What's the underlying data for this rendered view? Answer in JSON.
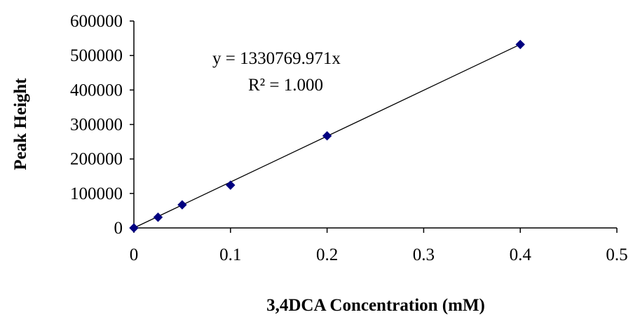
{
  "chart_data": {
    "type": "scatter",
    "title": "",
    "xlabel": "3,4DCA Concentration (mM)",
    "ylabel": "Peak Height",
    "xlim": [
      0,
      0.5
    ],
    "ylim": [
      0,
      600000
    ],
    "x_ticks": [
      "0",
      "0.1",
      "0.2",
      "0.3",
      "0.4",
      "0.5"
    ],
    "y_ticks": [
      "0",
      "100000",
      "200000",
      "300000",
      "400000",
      "500000",
      "600000"
    ],
    "grid": false,
    "legend": "none",
    "series": [
      {
        "color": "#000080",
        "marker": "diamond",
        "points": [
          {
            "x": 0,
            "y": 0
          },
          {
            "x": 0.025,
            "y": 31000
          },
          {
            "x": 0.05,
            "y": 67000
          },
          {
            "x": 0.1,
            "y": 124000
          },
          {
            "x": 0.2,
            "y": 267000
          },
          {
            "x": 0.4,
            "y": 532000
          }
        ]
      }
    ],
    "trendline": {
      "type": "linear",
      "slope": 1330769.971,
      "intercept": 0,
      "x_range": [
        0,
        0.4
      ],
      "color": "#000000"
    },
    "annotations": {
      "equation": "y = 1330769.971x",
      "r_squared": "R² = 1.000"
    }
  }
}
